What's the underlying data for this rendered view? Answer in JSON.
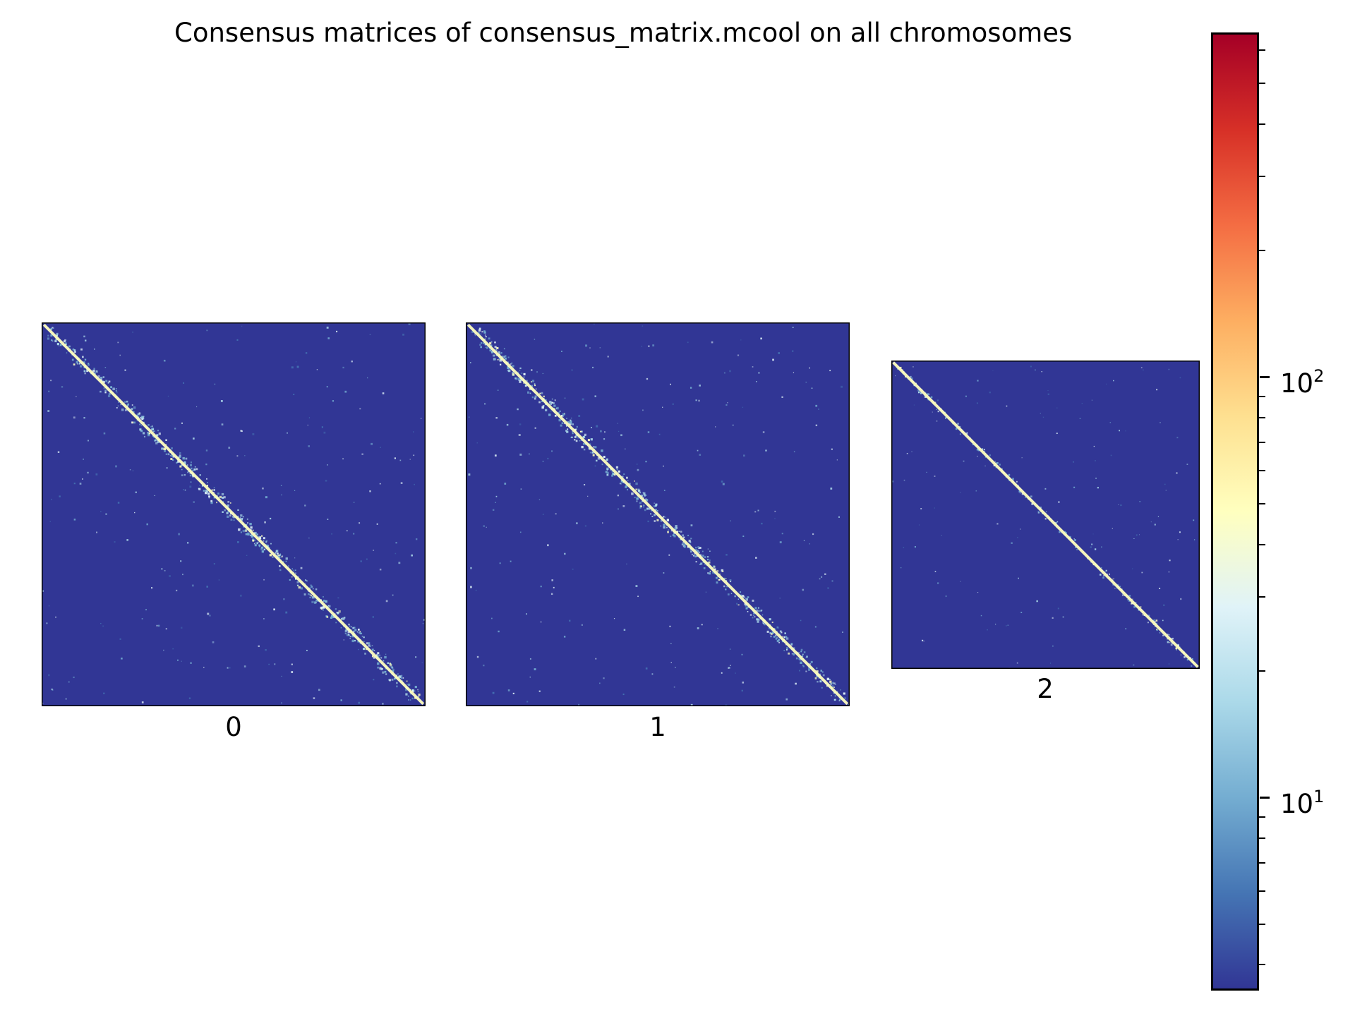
{
  "chart_data": {
    "type": "heatmap",
    "title": "Consensus matrices of consensus_matrix.mcool on all chromosomes",
    "panels": [
      {
        "label": "0"
      },
      {
        "label": "1"
      },
      {
        "label": "2"
      }
    ],
    "colormap": "RdYlBu_r",
    "background_color": "#313695",
    "diagonal_color": "#ffffbf",
    "colorbar": {
      "scale": "log",
      "range": [
        3.5,
        650
      ],
      "major_ticks": [
        {
          "base": "10",
          "exponent": "2",
          "value": 100
        },
        {
          "base": "10",
          "exponent": "1",
          "value": 10
        }
      ],
      "minor_ticks": [
        4,
        5,
        6,
        7,
        8,
        9,
        20,
        30,
        40,
        50,
        60,
        70,
        80,
        90,
        200,
        300,
        400,
        500,
        600
      ]
    }
  }
}
